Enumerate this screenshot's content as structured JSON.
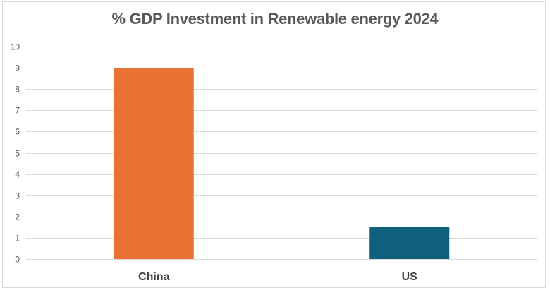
{
  "chart_data": {
    "type": "bar",
    "title": "% GDP Investment in Renewable energy 2024",
    "categories": [
      "China",
      "US"
    ],
    "values": [
      9,
      1.5
    ],
    "bar_colors": [
      "#E97132",
      "#0F5F7D"
    ],
    "xlabel": "",
    "ylabel": "",
    "ylim": [
      0,
      10
    ],
    "yticks": [
      "0",
      "1",
      "2",
      "3",
      "4",
      "5",
      "6",
      "7",
      "8",
      "9",
      "10"
    ],
    "grid": true,
    "legend": "none"
  },
  "colors": {
    "title": "#595959",
    "grid": "#D9D9D9",
    "tick_text": "#595959",
    "category_text": "#404040"
  }
}
